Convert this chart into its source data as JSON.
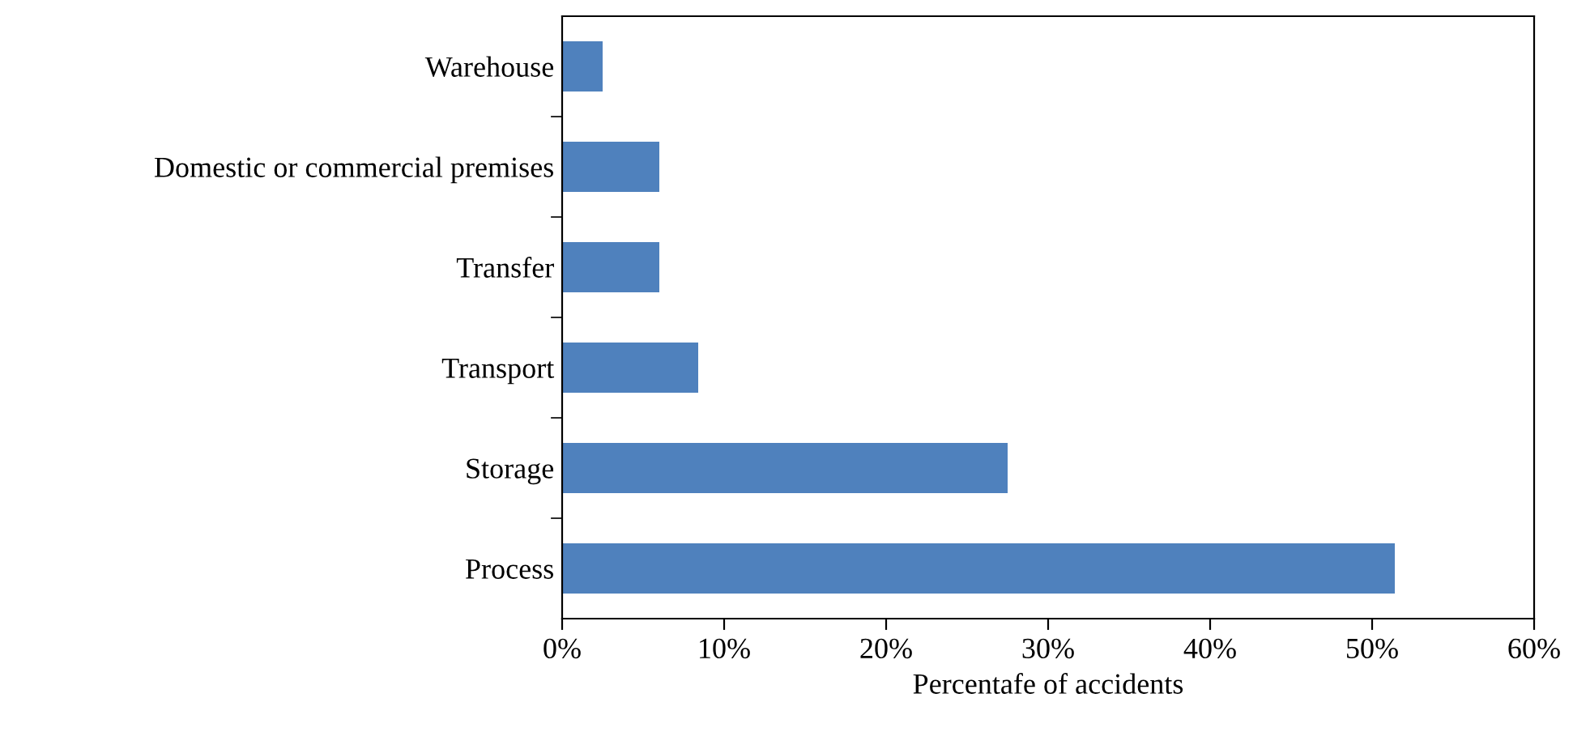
{
  "chart_data": {
    "type": "bar",
    "orientation": "horizontal",
    "xlabel": "Percentafe of accidents",
    "categories": [
      "Warehouse",
      "Domestic or commercial premises",
      "Transfer",
      "Transport",
      "Storage",
      "Process"
    ],
    "values": [
      2.5,
      6.0,
      6.0,
      8.4,
      27.5,
      51.4
    ],
    "color": "#4f81bd",
    "xlim": [
      0,
      60
    ],
    "xticks": [
      {
        "value": 0,
        "label": "0%"
      },
      {
        "value": 10,
        "label": "10%"
      },
      {
        "value": 20,
        "label": "20%"
      },
      {
        "value": 30,
        "label": "30%"
      },
      {
        "value": 40,
        "label": "40%"
      },
      {
        "value": 50,
        "label": "50%"
      },
      {
        "value": 60,
        "label": "60%"
      }
    ],
    "grid": false,
    "legend": false
  }
}
